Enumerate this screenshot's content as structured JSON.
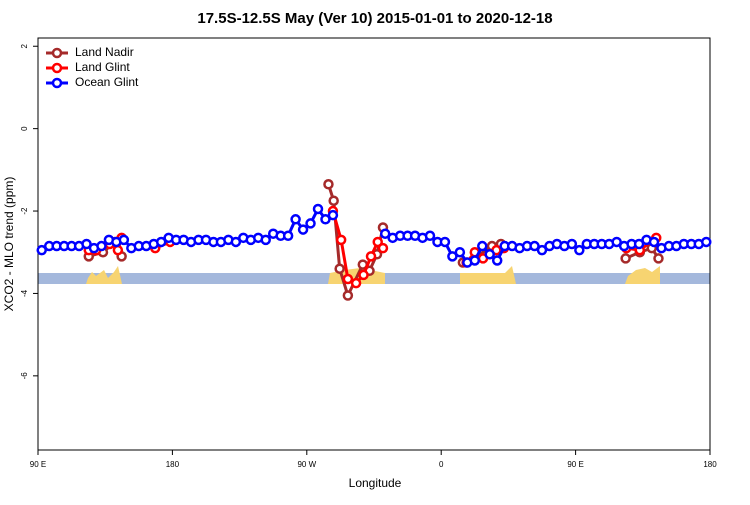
{
  "chart_data": {
    "type": "line",
    "title": "17.5S-12.5S May (Ver 10)   2015-01-01 to 2020-12-18",
    "x_label": "Longitude",
    "y_label": "XCO2 - MLO trend (ppm)",
    "xlim": [
      90,
      540
    ],
    "ylim": [
      -7.8,
      2.2
    ],
    "xticks": [
      {
        "value": 90,
        "label": "90 E"
      },
      180,
      {
        "value": 270,
        "label": "90 W"
      },
      {
        "value": 360,
        "label": "0"
      },
      {
        "value": 450,
        "label": "90 E"
      },
      {
        "value": 540,
        "label": "180"
      }
    ],
    "yticks": [
      -6,
      -4,
      -2,
      0,
      2
    ],
    "legend": "top-left",
    "series": [
      {
        "name": "Land Nadir",
        "color": "#a52a2a",
        "x": [
          124,
          133.5,
          141.5,
          146,
          null,
          284.5,
          288,
          292,
          297.5,
          307.5,
          312,
          317,
          321,
          null,
          374.5,
          384,
          394,
          400,
          null,
          483.5,
          493,
          501,
          505.5
        ],
        "values": [
          -3.1,
          -3.0,
          -2.75,
          -3.1,
          null,
          -1.35,
          -1.75,
          -3.4,
          -4.05,
          -3.3,
          -3.45,
          -3.05,
          -2.4,
          null,
          -3.25,
          -3.1,
          -2.85,
          -2.8,
          null,
          -3.15,
          -3.0,
          -2.9,
          -3.15
        ]
      },
      {
        "name": "Land Glint",
        "color": "#ff0000",
        "x": [
          124,
          129,
          138,
          143.5,
          146,
          null,
          168.5,
          178.5,
          null,
          287.5,
          293,
          297.5,
          303,
          308,
          313,
          317.5,
          321,
          null,
          377,
          382.5,
          388,
          392.5,
          397,
          402,
          null,
          484,
          493,
          504
        ],
        "values": [
          -2.95,
          -2.95,
          -2.8,
          -2.95,
          -2.65,
          null,
          -2.9,
          -2.75,
          null,
          -2.0,
          -2.7,
          -3.65,
          -3.75,
          -3.55,
          -3.1,
          -2.75,
          -2.9,
          null,
          -3.25,
          -3.0,
          -3.15,
          -3.05,
          -2.95,
          -2.9,
          null,
          -2.9,
          -2.95,
          -2.65
        ]
      },
      {
        "name": "Ocean Glint",
        "color": "#0000ff",
        "x": [
          92.5,
          97.5,
          102.5,
          107.5,
          112.5,
          117.5,
          122.5,
          127.5,
          132.5,
          137.5,
          142.5,
          147.5,
          152.5,
          157.5,
          162.5,
          167.5,
          172.5,
          177.5,
          182.5,
          187.5,
          192.5,
          197.5,
          202.5,
          207.5,
          212.5,
          217.5,
          222.5,
          227.5,
          232.5,
          237.5,
          242.5,
          247.5,
          252.5,
          257.5,
          262.5,
          267.5,
          272.5,
          277.5,
          282.5,
          287.5,
          292.5,
          297.5,
          302.5,
          307.5,
          312.5,
          317.5,
          322.5,
          327.5,
          332.5,
          337.5,
          342.5,
          347.5,
          352.5,
          357.5,
          362.5,
          367.5,
          372.5,
          377.5,
          382.5,
          387.5,
          392.5,
          397.5,
          402.5,
          407.5,
          412.5,
          417.5,
          422.5,
          427.5,
          432.5,
          437.5,
          442.5,
          447.5,
          452.5,
          457.5,
          462.5,
          467.5,
          472.5,
          477.5,
          482.5,
          487.5,
          492.5,
          497.5,
          502.5,
          507.5,
          512.5,
          517.5,
          522.5,
          527.5,
          532.5,
          537.5
        ],
        "values": [
          -2.95,
          -2.85,
          -2.85,
          -2.85,
          -2.85,
          -2.85,
          -2.8,
          -2.9,
          -2.85,
          -2.7,
          -2.75,
          -2.7,
          -2.9,
          -2.85,
          -2.85,
          -2.8,
          -2.75,
          -2.65,
          -2.7,
          -2.7,
          -2.75,
          -2.7,
          -2.7,
          -2.75,
          -2.75,
          -2.7,
          -2.75,
          -2.65,
          -2.7,
          -2.65,
          -2.7,
          -2.55,
          -2.6,
          -2.6,
          -2.2,
          -2.45,
          -2.3,
          -1.95,
          -2.2,
          -2.1,
          null,
          null,
          null,
          null,
          null,
          null,
          -2.55,
          -2.65,
          -2.6,
          -2.6,
          -2.6,
          -2.65,
          -2.6,
          -2.75,
          -2.75,
          -3.1,
          -3.0,
          -3.25,
          -3.2,
          -2.85,
          -3.05,
          -3.2,
          -2.85,
          -2.85,
          -2.9,
          -2.85,
          -2.85,
          -2.95,
          -2.85,
          -2.8,
          -2.85,
          -2.8,
          -2.95,
          -2.8,
          -2.8,
          -2.8,
          -2.8,
          -2.75,
          -2.85,
          -2.8,
          -2.8,
          -2.7,
          -2.75,
          -2.9,
          -2.85,
          -2.85,
          -2.8,
          -2.8,
          -2.8,
          -2.75
        ]
      }
    ]
  }
}
